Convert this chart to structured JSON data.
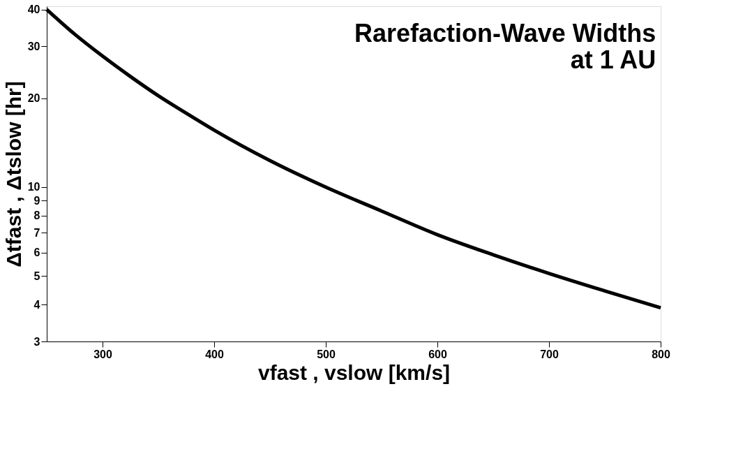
{
  "chart_data": {
    "type": "line",
    "title": [
      "Rarefaction-Wave Widths",
      "at 1 AU"
    ],
    "xlabel": "vfast , vslow   [km/s]",
    "ylabel": "Δtfast , Δtslow   [hr]",
    "x": [
      250,
      275,
      300,
      325,
      350,
      375,
      400,
      450,
      500,
      550,
      600,
      650,
      700,
      750,
      800
    ],
    "series": [
      {
        "color": "#000000",
        "values": [
          40,
          33,
          27.8,
          23.7,
          20.4,
          17.8,
          15.6,
          12.3,
          10,
          8.3,
          6.9,
          5.9,
          5.1,
          4.45,
          3.9
        ]
      }
    ],
    "xlim": [
      250,
      800
    ],
    "xticks": [
      300,
      400,
      500,
      600,
      700,
      800
    ],
    "ylim": [
      3,
      41
    ],
    "yticks": [
      3,
      4,
      5,
      6,
      7,
      8,
      9,
      10,
      20,
      30,
      40
    ],
    "log": "y",
    "grid": false,
    "legend": false,
    "marker": "none",
    "line_style": "solid"
  }
}
